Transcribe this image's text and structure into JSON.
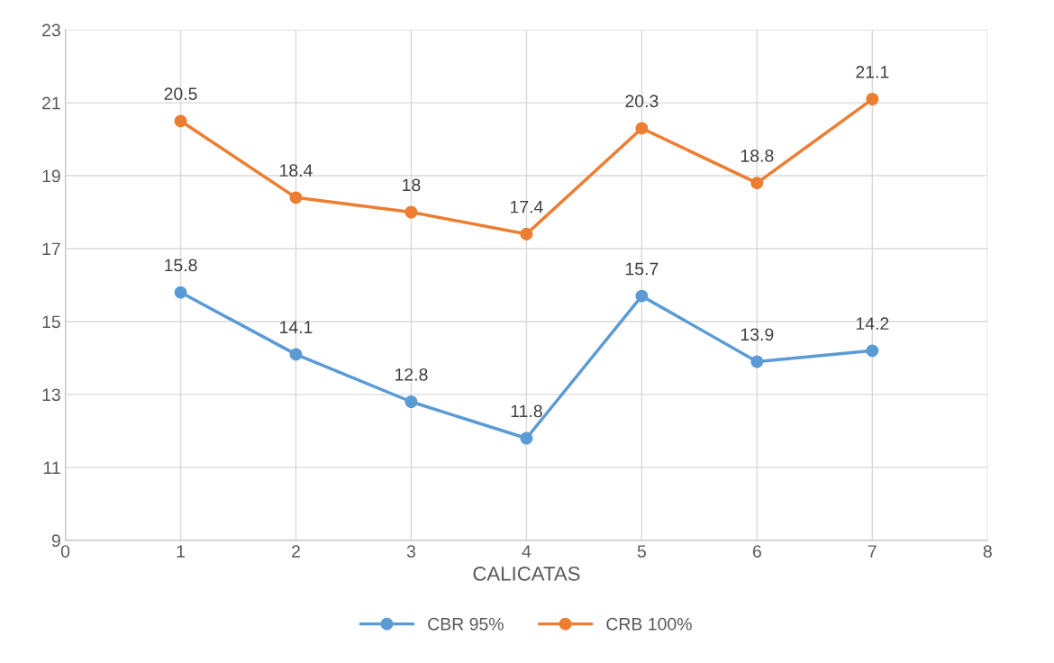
{
  "chart_data": {
    "type": "line",
    "xlabel": "CALICATAS",
    "x": [
      1,
      2,
      3,
      4,
      5,
      6,
      7
    ],
    "series": [
      {
        "name": "CBR 95%",
        "color": "#5b9bd5",
        "values": [
          15.8,
          14.1,
          12.8,
          11.8,
          15.7,
          13.9,
          14.2
        ]
      },
      {
        "name": "CRB 100%",
        "color": "#ed7d31",
        "values": [
          20.5,
          18.4,
          18,
          17.4,
          20.3,
          18.8,
          21.1
        ]
      }
    ],
    "xlim": [
      0,
      8
    ],
    "xticks": [
      0,
      1,
      2,
      3,
      4,
      5,
      6,
      7,
      8
    ],
    "ylim": [
      9,
      23
    ],
    "yticks": [
      9,
      11,
      13,
      15,
      17,
      19,
      21,
      23
    ],
    "grid": true,
    "legend": "bottom",
    "marker": "circle",
    "line_style": "solid",
    "data_labels": true
  }
}
